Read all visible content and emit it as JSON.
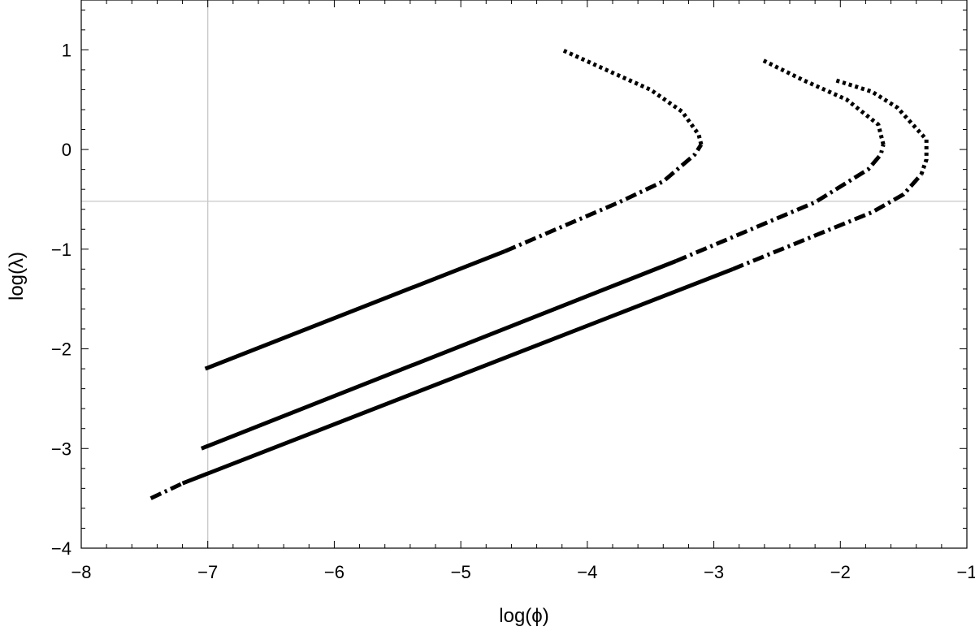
{
  "chart_data": {
    "type": "line",
    "xlabel": "log(ϕ)",
    "ylabel": "log(λ)",
    "xlim": [
      -8,
      -1
    ],
    "ylim": [
      -4,
      1.5
    ],
    "xticks": [
      {
        "value": -8,
        "label": "−8"
      },
      {
        "value": -7,
        "label": "−7"
      },
      {
        "value": -6,
        "label": "−6"
      },
      {
        "value": -5,
        "label": "−5"
      },
      {
        "value": -4,
        "label": "−4"
      },
      {
        "value": -3,
        "label": "−3"
      },
      {
        "value": -2,
        "label": "−2"
      },
      {
        "value": -1,
        "label": "−1"
      }
    ],
    "yticks": [
      {
        "value": -4,
        "label": "−4"
      },
      {
        "value": -3,
        "label": "−3"
      },
      {
        "value": -2,
        "label": "−2"
      },
      {
        "value": -1,
        "label": "−1"
      },
      {
        "value": 0,
        "label": "0"
      },
      {
        "value": 1,
        "label": "1"
      }
    ],
    "reference_lines": {
      "x": -7.0,
      "y": -0.52,
      "color": "#c8c8c8"
    },
    "line_color": "#000000",
    "series": [
      {
        "segments": [
          {
            "style": "solid",
            "points": [
              [
                -7.02,
                -2.2
              ],
              [
                -4.65,
                -1.02
              ]
            ]
          },
          {
            "style": "dashdot",
            "points": [
              [
                -4.65,
                -1.02
              ],
              [
                -3.75,
                -0.53
              ],
              [
                -3.4,
                -0.32
              ],
              [
                -3.15,
                -0.05
              ],
              [
                -3.1,
                0.05
              ]
            ]
          },
          {
            "style": "dotted",
            "points": [
              [
                -3.1,
                0.05
              ],
              [
                -3.12,
                0.15
              ],
              [
                -3.25,
                0.38
              ],
              [
                -3.5,
                0.6
              ],
              [
                -3.8,
                0.77
              ],
              [
                -4.2,
                1.0
              ]
            ]
          }
        ]
      },
      {
        "segments": [
          {
            "style": "solid",
            "points": [
              [
                -7.05,
                -3.0
              ],
              [
                -3.3,
                -1.12
              ]
            ]
          },
          {
            "style": "dashdot",
            "points": [
              [
                -3.3,
                -1.12
              ],
              [
                -2.2,
                -0.53
              ],
              [
                -1.78,
                -0.2
              ],
              [
                -1.68,
                -0.05
              ],
              [
                -1.66,
                0.05
              ]
            ]
          },
          {
            "style": "dotted",
            "points": [
              [
                -1.66,
                0.05
              ],
              [
                -1.7,
                0.25
              ],
              [
                -1.95,
                0.5
              ],
              [
                -2.3,
                0.7
              ],
              [
                -2.62,
                0.9
              ]
            ]
          }
        ]
      },
      {
        "segments": [
          {
            "style": "dashdot",
            "points": [
              [
                -7.45,
                -3.5
              ],
              [
                -7.2,
                -3.35
              ]
            ]
          },
          {
            "style": "solid",
            "points": [
              [
                -7.2,
                -3.35
              ],
              [
                -2.85,
                -1.2
              ]
            ]
          },
          {
            "style": "dashdot",
            "points": [
              [
                -2.85,
                -1.2
              ],
              [
                -1.75,
                -0.63
              ],
              [
                -1.5,
                -0.45
              ],
              [
                -1.36,
                -0.25
              ]
            ]
          },
          {
            "style": "dotted",
            "points": [
              [
                -1.36,
                -0.25
              ],
              [
                -1.32,
                -0.1
              ],
              [
                -1.32,
                0.1
              ],
              [
                -1.55,
                0.42
              ],
              [
                -1.75,
                0.58
              ],
              [
                -2.05,
                0.7
              ]
            ]
          }
        ]
      }
    ]
  }
}
